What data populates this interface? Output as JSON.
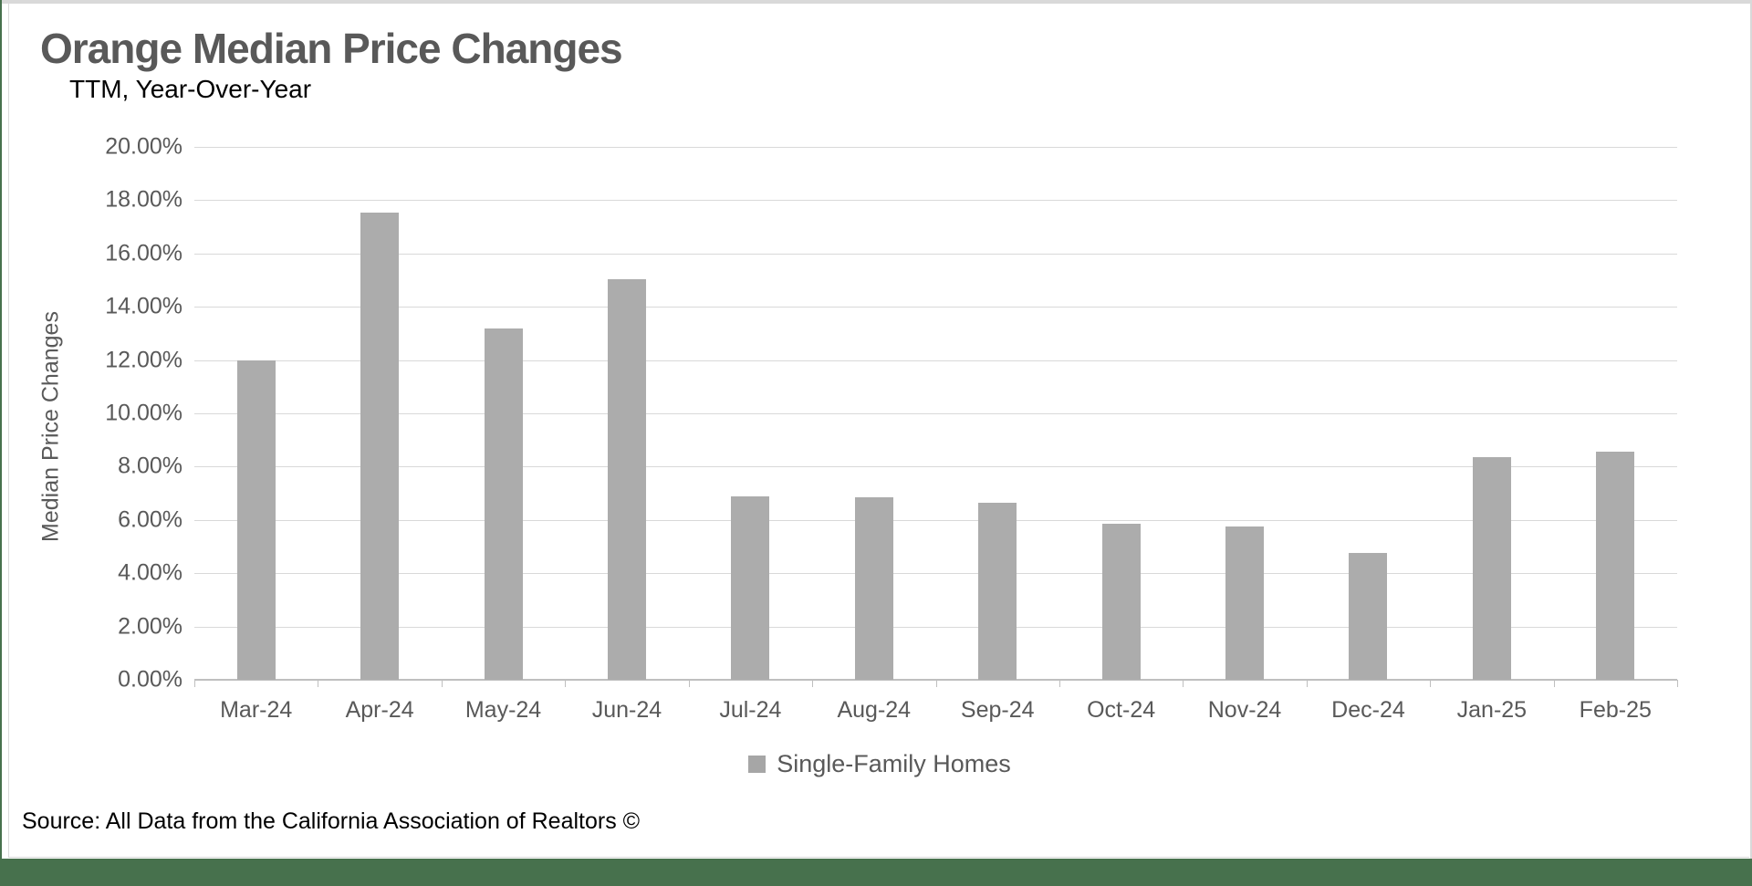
{
  "chart": {
    "title": "Orange Median Price Changes",
    "subtitle": "TTM, Year-Over-Year",
    "ylabel": "Median Price Changes",
    "legend": "Single-Family Homes",
    "source": "Source: All Data from the California Association of Realtors ©"
  },
  "chart_data": {
    "type": "bar",
    "title": "Orange Median Price Changes",
    "subtitle": "TTM, Year-Over-Year",
    "xlabel": "",
    "ylabel": "Median Price Changes",
    "categories": [
      "Mar-24",
      "Apr-24",
      "May-24",
      "Jun-24",
      "Jul-24",
      "Aug-24",
      "Sep-24",
      "Oct-24",
      "Nov-24",
      "Dec-24",
      "Jan-25",
      "Feb-25"
    ],
    "series": [
      {
        "name": "Single-Family Homes",
        "values": [
          12.0,
          17.55,
          13.2,
          15.05,
          6.9,
          6.85,
          6.65,
          5.85,
          5.75,
          4.75,
          8.35,
          8.55
        ]
      }
    ],
    "value_unit": "percent",
    "ylim": [
      0,
      20
    ],
    "ytick_step": 2,
    "ytick_labels": [
      "0.00%",
      "2.00%",
      "4.00%",
      "6.00%",
      "8.00%",
      "10.00%",
      "12.00%",
      "14.00%",
      "16.00%",
      "18.00%",
      "20.00%"
    ],
    "grid": true,
    "legend_position": "bottom",
    "annotations": [],
    "source": "Source: All Data from the California Association of Realtors ©"
  },
  "colors": {
    "bar_fill": "#acacac",
    "legend_swatch": "#a6a6a6",
    "gridline": "#d9d9d9",
    "axis_line": "#bfbfbf",
    "text_gray": "#595959",
    "accent_green": "#47714d",
    "frame_gray": "#d9d9d9"
  }
}
